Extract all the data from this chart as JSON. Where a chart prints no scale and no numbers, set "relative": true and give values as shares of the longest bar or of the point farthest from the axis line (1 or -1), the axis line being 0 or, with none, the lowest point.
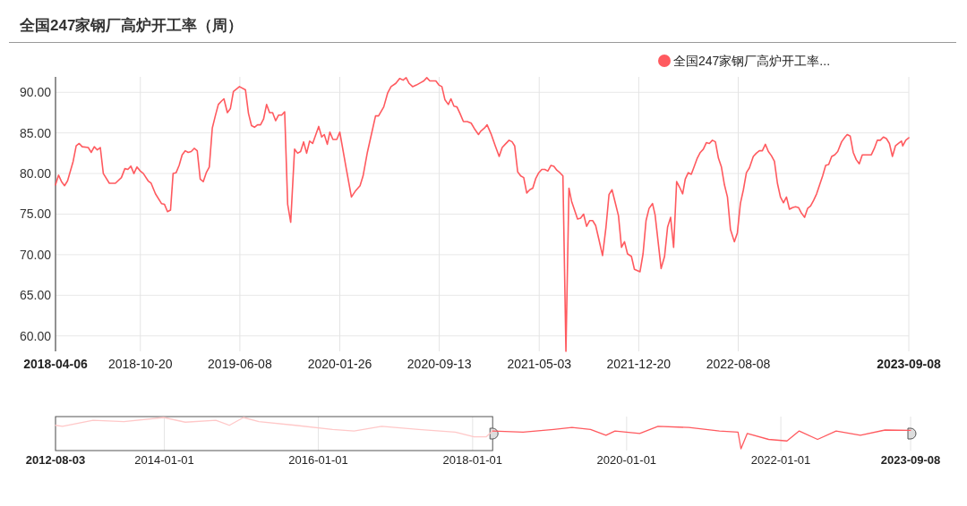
{
  "chart_data": [
    {
      "type": "line",
      "title": "全国247家钢厂高炉开工率（周）",
      "legend": "top right",
      "grid": true,
      "ylim": [
        58.1,
        91.9
      ],
      "yticks": [
        {
          "value": 60,
          "label": "60.00"
        },
        {
          "value": 65,
          "label": "65.00"
        },
        {
          "value": 70,
          "label": "70.00"
        },
        {
          "value": 75,
          "label": "75.00"
        },
        {
          "value": 80,
          "label": "80.00"
        },
        {
          "value": 85,
          "label": "85.00"
        },
        {
          "value": 90,
          "label": "90.00"
        }
      ],
      "xlim": [
        "2018-04-06",
        "2023-09-08"
      ],
      "xticks": [
        {
          "value": "2018-04-06",
          "label": "2018-04-06"
        },
        {
          "value": "2018-10-20",
          "label": "2018-10-20"
        },
        {
          "value": "2019-06-08",
          "label": "2019-06-08"
        },
        {
          "value": "2020-01-26",
          "label": "2020-01-26"
        },
        {
          "value": "2020-09-13",
          "label": "2020-09-13"
        },
        {
          "value": "2021-05-03",
          "label": "2021-05-03"
        },
        {
          "value": "2021-12-20",
          "label": "2021-12-20"
        },
        {
          "value": "2022-08-08",
          "label": "2022-08-08"
        },
        {
          "value": "2023-09-08",
          "label": "2023-09-08"
        }
      ],
      "series": [
        {
          "name": "全国247家钢厂高炉开工率...",
          "color": "#ff5a5f",
          "x": [
            "2018-04-06",
            "2018-04-13",
            "2018-04-20",
            "2018-04-27",
            "2018-05-04",
            "2018-05-17",
            "2018-05-24",
            "2018-05-31",
            "2018-06-07",
            "2018-06-21",
            "2018-06-28",
            "2018-07-05",
            "2018-07-12",
            "2018-07-19",
            "2018-07-26",
            "2018-08-09",
            "2018-08-23",
            "2018-09-06",
            "2018-09-14",
            "2018-09-21",
            "2018-09-28",
            "2018-10-05",
            "2018-10-12",
            "2018-10-20",
            "2018-10-27",
            "2018-11-07",
            "2018-11-14",
            "2018-11-24",
            "2018-12-08",
            "2018-12-15",
            "2018-12-22",
            "2018-12-29",
            "2019-01-04",
            "2019-01-11",
            "2019-01-18",
            "2019-01-25",
            "2019-02-01",
            "2019-02-08",
            "2019-02-15",
            "2019-02-22",
            "2019-03-01",
            "2019-03-08",
            "2019-03-15",
            "2019-03-22",
            "2019-03-29",
            "2019-04-05",
            "2019-04-12",
            "2019-04-19",
            "2019-04-26",
            "2019-05-02",
            "2019-05-10",
            "2019-05-17",
            "2019-05-24",
            "2019-05-31",
            "2019-06-07",
            "2019-06-21",
            "2019-06-28",
            "2019-07-05",
            "2019-07-12",
            "2019-07-19",
            "2019-07-26",
            "2019-08-02",
            "2019-08-09",
            "2019-08-16",
            "2019-08-23",
            "2019-08-30",
            "2019-09-06",
            "2019-09-13",
            "2019-09-20",
            "2019-09-27",
            "2019-10-04",
            "2019-10-13",
            "2019-10-20",
            "2019-10-27",
            "2019-11-03",
            "2019-11-10",
            "2019-11-17",
            "2019-11-24",
            "2019-12-08",
            "2019-12-15",
            "2019-12-21",
            "2019-12-28",
            "2020-01-03",
            "2020-01-10",
            "2020-01-19",
            "2020-01-26",
            "2020-02-10",
            "2020-02-22",
            "2020-03-03",
            "2020-03-13",
            "2020-03-20",
            "2020-03-30",
            "2020-04-07",
            "2020-04-18",
            "2020-04-25",
            "2020-05-07",
            "2020-05-16",
            "2020-05-24",
            "2020-06-04",
            "2020-06-13",
            "2020-06-21",
            "2020-06-28",
            "2020-07-05",
            "2020-07-13",
            "2020-07-22",
            "2020-08-01",
            "2020-08-08",
            "2020-08-15",
            "2020-08-22",
            "2020-09-05",
            "2020-09-12",
            "2020-09-19",
            "2020-09-26",
            "2020-10-04",
            "2020-10-10",
            "2020-10-17",
            "2020-10-24",
            "2020-10-31",
            "2020-11-08",
            "2020-11-17",
            "2020-11-26",
            "2020-12-05",
            "2020-12-13",
            "2020-12-18",
            "2020-12-27",
            "2021-01-02",
            "2021-01-11",
            "2021-01-21",
            "2021-01-30",
            "2021-02-06",
            "2021-02-13",
            "2021-02-22",
            "2021-03-01",
            "2021-03-07",
            "2021-03-14",
            "2021-03-21",
            "2021-03-28",
            "2021-04-04",
            "2021-04-11",
            "2021-04-18",
            "2021-04-25",
            "2021-05-02",
            "2021-05-09",
            "2021-05-16",
            "2021-05-23",
            "2021-05-30",
            "2021-06-06",
            "2021-06-13",
            "2021-06-20",
            "2021-06-27",
            "2021-07-04",
            "2021-07-11",
            "2021-07-17",
            "2021-07-24",
            "2021-07-31",
            "2021-08-07",
            "2021-08-14",
            "2021-08-21",
            "2021-08-28",
            "2021-09-04",
            "2021-09-11",
            "2021-09-18",
            "2021-09-27",
            "2021-10-05",
            "2021-10-12",
            "2021-10-19",
            "2021-10-27",
            "2021-11-03",
            "2021-11-10",
            "2021-11-17",
            "2021-11-24",
            "2021-12-03",
            "2021-12-10",
            "2021-12-23",
            "2021-12-30",
            "2022-01-06",
            "2022-01-13",
            "2022-01-21",
            "2022-01-27",
            "2022-02-03",
            "2022-02-10",
            "2022-02-18",
            "2022-02-25",
            "2022-03-04",
            "2022-03-11",
            "2022-03-18",
            "2022-03-25",
            "2022-04-01",
            "2022-04-07",
            "2022-04-14",
            "2022-04-21",
            "2022-04-28",
            "2022-05-05",
            "2022-05-12",
            "2022-05-19",
            "2022-05-26",
            "2022-06-02",
            "2022-06-09",
            "2022-06-16",
            "2022-06-23",
            "2022-06-30",
            "2022-07-07",
            "2022-07-14",
            "2022-07-21",
            "2022-07-30",
            "2022-08-06",
            "2022-08-13",
            "2022-08-20",
            "2022-08-27",
            "2022-09-03",
            "2022-09-12",
            "2022-09-19",
            "2022-09-26",
            "2022-10-03",
            "2022-10-10",
            "2022-10-17",
            "2022-10-24",
            "2022-10-31",
            "2022-11-07",
            "2022-11-14",
            "2022-11-21",
            "2022-11-28",
            "2022-12-05",
            "2022-12-12",
            "2022-12-19",
            "2022-12-26",
            "2023-01-02",
            "2023-01-09",
            "2023-01-16",
            "2023-01-23",
            "2023-01-30",
            "2023-02-06",
            "2023-02-13",
            "2023-02-20",
            "2023-02-27",
            "2023-03-06",
            "2023-03-13",
            "2023-03-20",
            "2023-03-27",
            "2023-04-05",
            "2023-04-13",
            "2023-04-18",
            "2023-04-25",
            "2023-05-02",
            "2023-05-09",
            "2023-05-16",
            "2023-05-23",
            "2023-05-30",
            "2023-06-06",
            "2023-06-13",
            "2023-06-20",
            "2023-06-27",
            "2023-07-04",
            "2023-07-11",
            "2023-07-18",
            "2023-07-25",
            "2023-08-01",
            "2023-08-08",
            "2023-08-15",
            "2023-08-22",
            "2023-08-25",
            "2023-09-01",
            "2023-09-08"
          ],
          "values": [
            78.6,
            79.8,
            79.0,
            78.5,
            79.1,
            81.5,
            83.4,
            83.7,
            83.3,
            83.2,
            82.6,
            83.3,
            82.9,
            83.2,
            80.0,
            78.8,
            78.8,
            79.5,
            80.6,
            80.5,
            80.9,
            80.0,
            80.8,
            80.3,
            80.0,
            79.1,
            78.8,
            77.5,
            76.3,
            76.2,
            75.3,
            75.5,
            80.0,
            80.1,
            81.0,
            82.3,
            82.8,
            82.6,
            82.7,
            83.1,
            82.8,
            79.3,
            79.0,
            80.1,
            80.8,
            85.6,
            87.1,
            88.5,
            88.9,
            89.2,
            87.5,
            88.0,
            90.1,
            90.4,
            90.7,
            90.3,
            87.4,
            85.9,
            85.7,
            86.0,
            86.0,
            86.7,
            88.5,
            87.5,
            87.5,
            86.5,
            87.2,
            87.2,
            87.6,
            76.2,
            74.0,
            83.0,
            82.5,
            82.7,
            83.9,
            82.5,
            84.0,
            83.7,
            85.8,
            84.5,
            84.8,
            83.6,
            85.1,
            84.2,
            84.2,
            85.1,
            80.6,
            77.1,
            77.9,
            78.5,
            79.7,
            82.6,
            84.5,
            87.1,
            87.1,
            88.2,
            89.9,
            90.7,
            91.1,
            91.7,
            91.5,
            91.8,
            91.1,
            90.7,
            90.9,
            91.2,
            91.4,
            91.8,
            91.4,
            91.4,
            90.9,
            90.7,
            89.1,
            88.5,
            89.2,
            88.3,
            88.2,
            87.4,
            86.4,
            86.4,
            86.2,
            85.4,
            84.8,
            85.2,
            85.6,
            86.0,
            84.9,
            83.4,
            82.1,
            83.2,
            83.6,
            84.1,
            83.9,
            83.4,
            80.2,
            79.7,
            79.5,
            77.6,
            78.0,
            78.2,
            79.4,
            80.1,
            80.5,
            80.5,
            80.3,
            81.0,
            80.9,
            80.4,
            80.1,
            79.7,
            58.1,
            78.2,
            76.6,
            75.5,
            74.4,
            74.5,
            75.0,
            73.5,
            74.2,
            74.2,
            73.6,
            72.0,
            69.9,
            73.4,
            77.4,
            78.0,
            76.3,
            74.8,
            70.9,
            71.6,
            70.1,
            69.8,
            68.2,
            67.9,
            70.1,
            74.2,
            75.7,
            76.3,
            74.9,
            71.6,
            68.3,
            69.8,
            73.4,
            74.6,
            70.9,
            79.0,
            78.3,
            77.5,
            79.3,
            80.1,
            79.9,
            80.9,
            81.9,
            82.6,
            83.0,
            83.8,
            83.7,
            84.1,
            83.9,
            81.9,
            80.8,
            78.6,
            77.1,
            73.1,
            71.6,
            72.7,
            76.3,
            78.0,
            80.1,
            80.7,
            82.1,
            82.5,
            82.8,
            82.8,
            83.6,
            82.7,
            82.2,
            81.5,
            78.8,
            77.1,
            76.4,
            77.1,
            75.6,
            75.8,
            75.9,
            75.8,
            75.1,
            74.6,
            75.7,
            76.0,
            76.7,
            77.5,
            78.6,
            79.7,
            81.0,
            81.1,
            82.1,
            82.3,
            82.7,
            83.9,
            84.5,
            84.8,
            84.6,
            82.6,
            81.7,
            81.2,
            82.3,
            82.3,
            82.3,
            82.3,
            83.1,
            84.1,
            84.1,
            84.5,
            84.3,
            83.7,
            82.1,
            83.4,
            83.7,
            84.0,
            83.4,
            84.1,
            84.4
          ]
        }
      ]
    },
    {
      "type": "line",
      "relative": true,
      "tick_labels": "x",
      "grid": "x",
      "xlim": [
        "2012-08-03",
        "2023-09-08"
      ],
      "xticks": [
        {
          "value": "2012-08-03",
          "label": "2012-08-03"
        },
        {
          "value": "2014-01-01",
          "label": "2014-01-01"
        },
        {
          "value": "2016-01-01",
          "label": "2016-01-01"
        },
        {
          "value": "2018-01-01",
          "label": "2018-01-01"
        },
        {
          "value": "2020-01-01",
          "label": "2020-01-01"
        },
        {
          "value": "2022-01-01",
          "label": "2022-01-01"
        },
        {
          "value": "2023-09-08",
          "label": "2023-09-08"
        }
      ],
      "series": [
        {
          "color": "#ffc8c8",
          "x": [
            "2012-08-03",
            "2012-09-05",
            "2013-01-28",
            "2013-06-23",
            "2013-12-29",
            "2014-04-10",
            "2014-09-02",
            "2014-11-05",
            "2015-01-11",
            "2015-03-25",
            "2015-09-14",
            "2016-03-08",
            "2016-06-18",
            "2016-10-27",
            "2017-04-20",
            "2017-10-11",
            "2018-01-08",
            "2018-03-06",
            "2018-04-06"
          ],
          "values": [
            0.75,
            0.72,
            0.91,
            0.87,
            1,
            0.85,
            0.91,
            0.75,
            1,
            0.87,
            0.75,
            0.62,
            0.57,
            0.72,
            0.62,
            0.53,
            0.38,
            0.38,
            0.57
          ]
        },
        {
          "color": "#ff5a5f",
          "x": [
            "2018-04-06",
            "2018-08-28",
            "2019-01-20",
            "2019-04-17",
            "2019-07-14",
            "2019-09-25",
            "2019-11-07",
            "2020-03-03",
            "2020-05-29",
            "2020-10-22",
            "2021-03-16",
            "2021-06-12",
            "2021-06-26",
            "2021-07-26",
            "2021-11-04",
            "2022-01-30",
            "2022-03-29",
            "2022-06-24",
            "2022-09-20",
            "2023-01-13",
            "2023-05-10",
            "2023-09-08"
          ],
          "values": [
            0.57,
            0.53,
            0.62,
            0.68,
            0.62,
            0.43,
            0.57,
            0.49,
            0.72,
            0.68,
            0.57,
            0.53,
            0,
            0.49,
            0.3,
            0.25,
            0.57,
            0.3,
            0.57,
            0.43,
            0.6,
            0.59
          ]
        }
      ]
    }
  ]
}
